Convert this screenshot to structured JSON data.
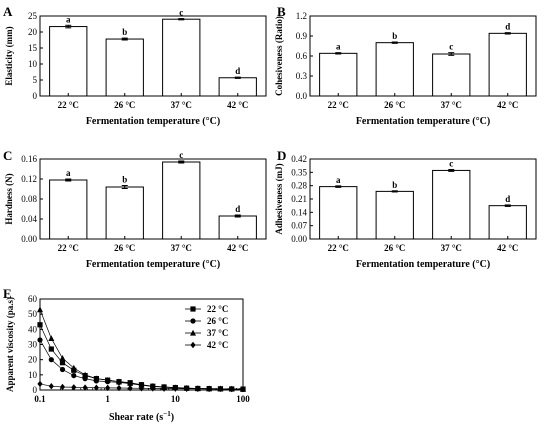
{
  "chart_data": [
    {
      "panel": "A",
      "type": "bar",
      "categories": [
        "22 °C",
        "26 °C",
        "37 °C",
        "42 °C"
      ],
      "values": [
        21.7,
        17.8,
        24.0,
        5.7
      ],
      "errors": [
        0.4,
        0.3,
        0.2,
        0.2
      ],
      "letters": [
        "a",
        "b",
        "c",
        "d"
      ],
      "xlabel": "Fermentation temperature (°C)",
      "ylabel": "Elasticity (mm)",
      "ylim": [
        0,
        25
      ],
      "yticks": [
        "0",
        "5",
        "10",
        "15",
        "20",
        "25"
      ]
    },
    {
      "panel": "B",
      "type": "bar",
      "categories": [
        "22 °C",
        "26 °C",
        "37 °C",
        "42 °C"
      ],
      "values": [
        0.64,
        0.8,
        0.63,
        0.94
      ],
      "errors": [
        0.01,
        0.01,
        0.02,
        0.01
      ],
      "letters": [
        "a",
        "b",
        "c",
        "d"
      ],
      "xlabel": "Fermentation temperature (°C)",
      "ylabel": "Cohesiveness (Ratio)",
      "ylim": [
        0,
        1.2
      ],
      "yticks": [
        "0.0",
        "0.3",
        "0.6",
        "0.9",
        "1.2"
      ]
    },
    {
      "panel": "C",
      "type": "bar",
      "categories": [
        "22 °C",
        "26 °C",
        "37 °C",
        "42 °C"
      ],
      "values": [
        0.118,
        0.104,
        0.154,
        0.046
      ],
      "errors": [
        0.002,
        0.003,
        0.002,
        0.002
      ],
      "letters": [
        "a",
        "b",
        "c",
        "d"
      ],
      "xlabel": "Fermentation temperature (°C)",
      "ylabel": "Hardness (N)",
      "ylim": [
        0,
        0.16
      ],
      "yticks": [
        "0.00",
        "0.04",
        "0.08",
        "0.12",
        "0.16"
      ]
    },
    {
      "panel": "D",
      "type": "bar",
      "categories": [
        "22 °C",
        "26 °C",
        "37 °C",
        "42 °C"
      ],
      "values": [
        0.275,
        0.25,
        0.36,
        0.175
      ],
      "errors": [
        0.004,
        0.003,
        0.005,
        0.004
      ],
      "letters": [
        "a",
        "b",
        "c",
        "d"
      ],
      "xlabel": "Fermentation temperature (°C)",
      "ylabel": "Adhesiveness (mJ)",
      "ylim": [
        0,
        0.42
      ],
      "yticks": [
        "0.00",
        "0.07",
        "0.14",
        "0.21",
        "0.28",
        "0.35",
        "0.42"
      ]
    },
    {
      "panel": "E",
      "type": "line",
      "xscale": "log",
      "xlabel": "Shear rate (s",
      "xlabel_sup": "−1",
      "xlabel_close": ")",
      "ylabel": "Apparent viscosity (pa.s)",
      "xlim": [
        0.1,
        100
      ],
      "ylim": [
        0,
        60
      ],
      "xticks": [
        "0.1",
        "1",
        "10",
        "100"
      ],
      "yticks": [
        "0",
        "10",
        "20",
        "30",
        "40",
        "50",
        "60"
      ],
      "legend_position": "top-right",
      "x": [
        0.1,
        0.147,
        0.215,
        0.316,
        0.464,
        0.681,
        1.0,
        1.47,
        2.15,
        3.16,
        4.64,
        6.81,
        10,
        14.7,
        21.5,
        31.6,
        46.4,
        68.1,
        100
      ],
      "series": [
        {
          "name": "22 °C",
          "marker": "square",
          "values": [
            43,
            27,
            18,
            13,
            9.5,
            7.5,
            6.5,
            5.5,
            4.8,
            3.5,
            2.5,
            2.0,
            1.6,
            1.2,
            1.0,
            0.9,
            0.8,
            0.7,
            0.6
          ]
        },
        {
          "name": "26 °C",
          "marker": "circle",
          "values": [
            33,
            20,
            13.5,
            9.5,
            7.5,
            6.0,
            5.5,
            5.0,
            4.2,
            3.2,
            2.3,
            1.9,
            1.5,
            1.1,
            0.9,
            0.8,
            0.7,
            0.6,
            0.5
          ]
        },
        {
          "name": "37 °C",
          "marker": "triangle",
          "values": [
            53,
            34,
            21,
            14.5,
            10,
            7.5,
            6.5,
            5.5,
            4.5,
            3.3,
            2.5,
            2.0,
            1.6,
            1.3,
            1.0,
            0.9,
            0.8,
            0.7,
            0.6
          ]
        },
        {
          "name": "42 °C",
          "marker": "diamond",
          "values": [
            4,
            2.5,
            2.0,
            1.8,
            1.6,
            1.5,
            1.4,
            1.3,
            1.2,
            1.1,
            1.0,
            0.9,
            0.9,
            0.8,
            0.8,
            0.7,
            0.7,
            0.6,
            0.6
          ]
        }
      ]
    }
  ]
}
